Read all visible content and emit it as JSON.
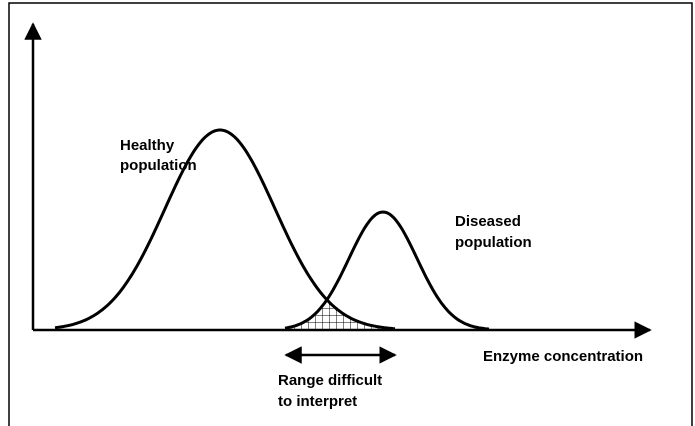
{
  "healthy_label": [
    "Healthy",
    "population"
  ],
  "diseased_label": [
    "Diseased",
    "population"
  ],
  "x_axis_label": "Enzyme concentration",
  "range_label": [
    "Range difficult",
    "to interpret"
  ]
}
